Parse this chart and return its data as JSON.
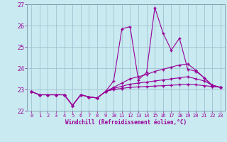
{
  "xlabel": "Windchill (Refroidissement éolien,°C)",
  "bg_color": "#c8eaf0",
  "line_color": "#990099",
  "grid_color": "#99bbcc",
  "spine_color": "#7799aa",
  "xlim": [
    -0.5,
    23.5
  ],
  "ylim": [
    22,
    27
  ],
  "yticks": [
    22,
    23,
    24,
    25,
    26,
    27
  ],
  "xticks": [
    0,
    1,
    2,
    3,
    4,
    5,
    6,
    7,
    8,
    9,
    10,
    11,
    12,
    13,
    14,
    15,
    16,
    17,
    18,
    19,
    20,
    21,
    22,
    23
  ],
  "line1_x": [
    0,
    1,
    2,
    3,
    4,
    5,
    6,
    7,
    8,
    9,
    10,
    11,
    12,
    13,
    14,
    15,
    16,
    17,
    18,
    19,
    20,
    21,
    22,
    23
  ],
  "line1_y": [
    22.9,
    22.75,
    22.75,
    22.75,
    22.75,
    22.25,
    22.75,
    22.65,
    22.6,
    22.9,
    23.4,
    25.85,
    25.95,
    23.45,
    23.8,
    26.85,
    25.65,
    24.85,
    25.4,
    23.95,
    23.85,
    23.55,
    23.15,
    23.1
  ],
  "line2_x": [
    0,
    1,
    2,
    3,
    4,
    5,
    6,
    7,
    8,
    9,
    10,
    11,
    12,
    13,
    14,
    15,
    16,
    17,
    18,
    19,
    20,
    21,
    22,
    23
  ],
  "line2_y": [
    22.9,
    22.75,
    22.75,
    22.75,
    22.75,
    22.25,
    22.75,
    22.65,
    22.6,
    22.9,
    23.1,
    23.3,
    23.5,
    23.6,
    23.7,
    23.85,
    23.95,
    24.05,
    24.15,
    24.2,
    23.9,
    23.55,
    23.2,
    23.1
  ],
  "line3_x": [
    0,
    1,
    2,
    3,
    4,
    5,
    6,
    7,
    8,
    9,
    10,
    11,
    12,
    13,
    14,
    15,
    16,
    17,
    18,
    19,
    20,
    21,
    22,
    23
  ],
  "line3_y": [
    22.9,
    22.75,
    22.75,
    22.75,
    22.75,
    22.25,
    22.75,
    22.65,
    22.6,
    22.9,
    23.05,
    23.15,
    23.25,
    23.3,
    23.35,
    23.4,
    23.45,
    23.5,
    23.55,
    23.6,
    23.5,
    23.4,
    23.2,
    23.1
  ],
  "line4_x": [
    0,
    1,
    2,
    3,
    4,
    5,
    6,
    7,
    8,
    9,
    10,
    11,
    12,
    13,
    14,
    15,
    16,
    17,
    18,
    19,
    20,
    21,
    22,
    23
  ],
  "line4_y": [
    22.9,
    22.75,
    22.75,
    22.75,
    22.75,
    22.25,
    22.75,
    22.65,
    22.6,
    22.9,
    23.0,
    23.05,
    23.1,
    23.12,
    23.14,
    23.16,
    23.18,
    23.2,
    23.22,
    23.25,
    23.22,
    23.18,
    23.14,
    23.1
  ]
}
